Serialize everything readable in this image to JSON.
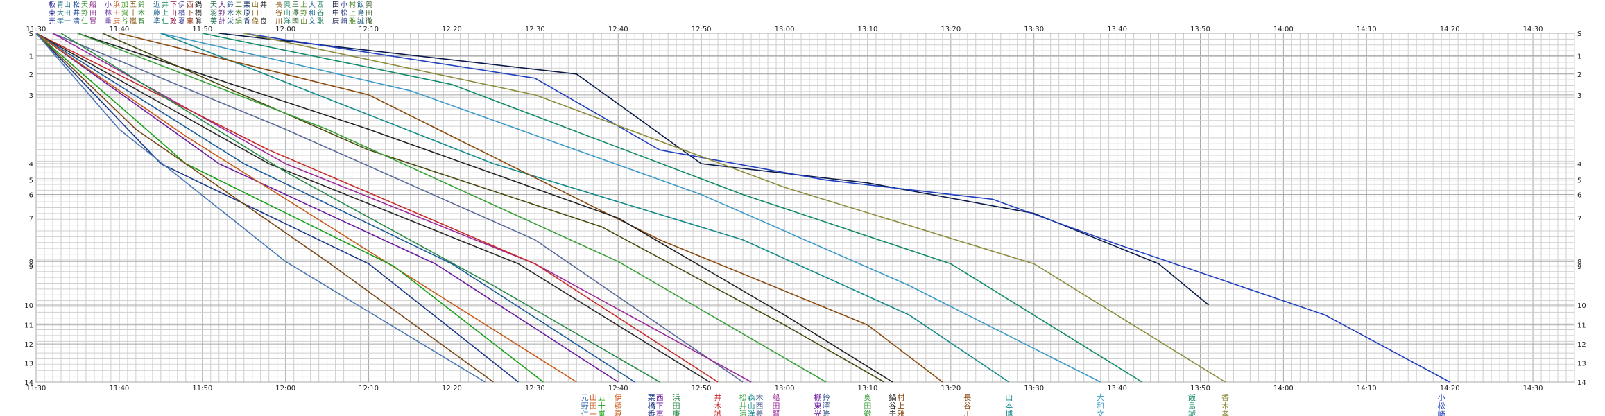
{
  "chart_data": {
    "type": "line",
    "title": "",
    "xlabel": "",
    "ylabel": "",
    "x_range": [
      "11:30",
      "14:35"
    ],
    "y_range": [
      0,
      14
    ],
    "grid": "on",
    "x_tick_labels": [
      "11:30",
      "11:40",
      "11:50",
      "12:00",
      "12:10",
      "12:20",
      "12:30",
      "12:40",
      "12:50",
      "13:00",
      "13:10",
      "13:20",
      "13:30",
      "13:40",
      "13:50",
      "14:00",
      "14:10",
      "14:20",
      "14:30"
    ],
    "y_ticks": [
      {
        "label": "S",
        "value": 0
      },
      {
        "label": "1",
        "value": 1
      },
      {
        "label": "2",
        "value": 2
      },
      {
        "label": "3",
        "value": 3
      },
      {
        "label": "4",
        "value": 4
      },
      {
        "label": "5",
        "value": 5
      },
      {
        "label": "6",
        "value": 6
      },
      {
        "label": "7",
        "value": 7
      },
      {
        "label": "8",
        "value": 8
      },
      {
        "label": "9",
        "value": 9
      },
      {
        "label": "10",
        "value": 10
      },
      {
        "label": "11",
        "value": 11
      },
      {
        "label": "12",
        "value": 12
      },
      {
        "label": "13",
        "value": 13
      },
      {
        "label": "14",
        "value": 14
      }
    ],
    "y_tick_positions": [
      0,
      1.25,
      2.25,
      3.4,
      7.2,
      8.1,
      8.9,
      10.2,
      12.6,
      12.85,
      15,
      16.1,
      17.15,
      18.2,
      19.25
    ],
    "y_tick_scale_max": 19.25,
    "series": [
      {
        "color": "#0a1a4a",
        "points": [
          [
            "11:52",
            0
          ],
          [
            "12:35",
            2
          ],
          [
            "12:50",
            4
          ],
          [
            "13:10",
            5.2
          ],
          [
            "13:30",
            6.8
          ],
          [
            "13:45",
            8.5
          ],
          [
            "13:51",
            10
          ]
        ]
      },
      {
        "color": "#1f3fbf",
        "points": [
          [
            "11:55",
            0
          ],
          [
            "12:30",
            2.2
          ],
          [
            "12:45",
            3.8
          ],
          [
            "13:05",
            5
          ],
          [
            "13:25",
            6.2
          ],
          [
            "13:40",
            7.6
          ],
          [
            "14:05",
            10.5
          ],
          [
            "14:20",
            14
          ]
        ]
      },
      {
        "color": "#8c8c3c",
        "points": [
          [
            "11:55",
            0
          ],
          [
            "12:30",
            3
          ],
          [
            "13:00",
            5.5
          ],
          [
            "13:30",
            8.5
          ],
          [
            "13:53",
            14
          ]
        ]
      },
      {
        "color": "#0f8a6a",
        "points": [
          [
            "11:50",
            0
          ],
          [
            "12:20",
            2.5
          ],
          [
            "12:55",
            6
          ],
          [
            "13:20",
            8.5
          ],
          [
            "13:43",
            14
          ]
        ]
      },
      {
        "color": "#3a9ac8",
        "points": [
          [
            "11:45",
            0
          ],
          [
            "12:15",
            2.8
          ],
          [
            "12:50",
            6
          ],
          [
            "13:15",
            9.5
          ],
          [
            "13:38",
            14
          ]
        ]
      },
      {
        "color": "#138a8a",
        "points": [
          [
            "11:45",
            0
          ],
          [
            "12:25",
            4
          ],
          [
            "12:55",
            7.5
          ],
          [
            "13:15",
            10.5
          ],
          [
            "13:27",
            14
          ]
        ]
      },
      {
        "color": "#8a4a10",
        "points": [
          [
            "11:40",
            0
          ],
          [
            "12:10",
            3
          ],
          [
            "12:45",
            7.5
          ],
          [
            "13:10",
            11
          ],
          [
            "13:19",
            14
          ]
        ]
      },
      {
        "color": "#222222",
        "points": [
          [
            "11:35",
            0
          ],
          [
            "12:10",
            3.5
          ],
          [
            "12:40",
            7
          ],
          [
            "13:00",
            10.5
          ],
          [
            "13:13",
            14
          ]
        ]
      },
      {
        "color": "#4a4a10",
        "points": [
          [
            "11:38",
            0
          ],
          [
            "12:10",
            3.8
          ],
          [
            "12:38",
            7.2
          ],
          [
            "13:00",
            11
          ],
          [
            "13:12",
            14
          ]
        ]
      },
      {
        "color": "#3aa03a",
        "points": [
          [
            "11:35",
            0
          ],
          [
            "12:05",
            3.5
          ],
          [
            "12:40",
            8
          ],
          [
            "13:05",
            14
          ]
        ]
      },
      {
        "color": "#5a6a9a",
        "points": [
          [
            "11:32",
            0
          ],
          [
            "12:00",
            3.5
          ],
          [
            "12:30",
            7.5
          ],
          [
            "12:55",
            14
          ]
        ]
      },
      {
        "color": "#9a2a9a",
        "points": [
          [
            "11:32",
            0
          ],
          [
            "12:00",
            4
          ],
          [
            "12:30",
            8.5
          ],
          [
            "12:56",
            14
          ]
        ]
      },
      {
        "color": "#c82a2a",
        "points": [
          [
            "11:30",
            0
          ],
          [
            "11:58",
            3.8
          ],
          [
            "12:30",
            8.5
          ],
          [
            "12:52",
            14
          ]
        ]
      },
      {
        "color": "#2a2a2a",
        "points": [
          [
            "11:30",
            0
          ],
          [
            "11:58",
            4
          ],
          [
            "12:28",
            8.5
          ],
          [
            "12:51",
            14
          ]
        ]
      },
      {
        "color": "#2a8a4a",
        "points": [
          [
            "11:33",
            0
          ],
          [
            "12:00",
            4.5
          ],
          [
            "12:25",
            9.5
          ],
          [
            "12:45",
            14
          ]
        ]
      },
      {
        "color": "#1a5a9a",
        "points": [
          [
            "11:30",
            0
          ],
          [
            "11:55",
            4
          ],
          [
            "12:20",
            8.5
          ],
          [
            "12:42",
            14
          ]
        ]
      },
      {
        "color": "#6a1aa0",
        "points": [
          [
            "11:30",
            0
          ],
          [
            "11:52",
            4
          ],
          [
            "12:18",
            8.5
          ],
          [
            "12:40",
            14
          ]
        ]
      },
      {
        "color": "#c85a1a",
        "points": [
          [
            "11:30",
            0
          ],
          [
            "11:48",
            3.6
          ],
          [
            "12:12",
            8
          ],
          [
            "12:35",
            14
          ]
        ]
      },
      {
        "color": "#18a018",
        "points": [
          [
            "11:30",
            0
          ],
          [
            "11:48",
            4
          ],
          [
            "12:13",
            9
          ],
          [
            "12:31",
            14
          ]
        ]
      },
      {
        "color": "#1a3a8a",
        "points": [
          [
            "11:30",
            0
          ],
          [
            "11:45",
            4
          ],
          [
            "12:10",
            8.5
          ],
          [
            "12:28",
            14
          ]
        ]
      },
      {
        "color": "#7a4a1a",
        "points": [
          [
            "11:30",
            0
          ],
          [
            "11:42",
            3.5
          ],
          [
            "12:05",
            8
          ],
          [
            "12:25",
            14
          ]
        ]
      },
      {
        "color": "#4a78b4",
        "points": [
          [
            "11:30",
            0
          ],
          [
            "11:40",
            3.5
          ],
          [
            "12:00",
            8
          ],
          [
            "12:24",
            14
          ]
        ]
      }
    ]
  },
  "top_name_groups": [
    {
      "color": "#2a2a9a",
      "lines": [
        "板",
        "東",
        "光"
      ]
    },
    {
      "color": "#2a7a8a",
      "lines": [
        "青山",
        "大田",
        "孝一"
      ]
    },
    {
      "color": "#1a4a9a",
      "lines": [
        "松",
        "井",
        "清"
      ]
    },
    {
      "color": "#3a9a3a",
      "lines": [
        "天",
        "野",
        "仁"
      ]
    },
    {
      "color": "#8a2a8a",
      "lines": [
        "船",
        "田",
        "賢"
      ]
    },
    {
      "color": "#6a3aa0",
      "lines": [
        "小",
        "林",
        "重"
      ]
    },
    {
      "color": "#c85a1a",
      "lines": [
        "浜",
        "田",
        "康"
      ]
    },
    {
      "color": "#4a9a2a",
      "lines": [
        "加",
        "賀",
        "谷"
      ]
    },
    {
      "color": "#8a5a1a",
      "lines": [
        "五",
        "十",
        "嵐"
      ]
    },
    {
      "color": "#3a8a3a",
      "lines": [
        "鈴",
        "木",
        "智"
      ]
    },
    {
      "color": "#2a6a9a",
      "lines": [
        "近",
        "藤",
        "準"
      ]
    },
    {
      "color": "#1a8a5a",
      "lines": [
        "井",
        "上",
        "仁"
      ]
    },
    {
      "color": "#8a1a4a",
      "lines": [
        "下",
        "山",
        "政"
      ]
    },
    {
      "color": "#3a3a9a",
      "lines": [
        "伊",
        "橋",
        "夏"
      ]
    },
    {
      "color": "#9a3a1a",
      "lines": [
        "西",
        "下",
        "車"
      ]
    },
    {
      "color": "#1a1a1a",
      "lines": [
        "鍋",
        "橋",
        "眞"
      ]
    },
    {
      "color": "#1a6a4a",
      "lines": [
        "天",
        "羽",
        "英"
      ]
    },
    {
      "color": "#6a2a8a",
      "lines": [
        "大",
        "野",
        "計"
      ]
    },
    {
      "color": "#2a5a8a",
      "lines": [
        "鈴",
        "木",
        "栄"
      ]
    },
    {
      "color": "#3a7a1a",
      "lines": [
        "二",
        "木",
        "絹"
      ]
    },
    {
      "color": "#1a3a6a",
      "lines": [
        "栗",
        "原",
        "香"
      ]
    },
    {
      "color": "#8a6a1a",
      "lines": [
        "山",
        "口",
        "偉"
      ]
    },
    {
      "color": "#2a2a2a",
      "lines": [
        "井",
        "口",
        "良"
      ]
    },
    {
      "color": "#8a5a1a",
      "lines": [
        "長",
        "谷",
        "川"
      ]
    },
    {
      "color": "#2a8a6a",
      "lines": [
        "奥",
        "山",
        "洋"
      ]
    },
    {
      "color": "#3a6a3a",
      "lines": [
        "三",
        "澤",
        "國"
      ]
    },
    {
      "color": "#5a8a2a",
      "lines": [
        "上",
        "野",
        "山"
      ]
    },
    {
      "color": "#2a6a9a",
      "lines": [
        "大",
        "和",
        "文"
      ]
    },
    {
      "color": "#1a7a5a",
      "lines": [
        "西",
        "谷",
        "聡"
      ]
    },
    {
      "color": "#1a1a4a",
      "lines": [
        "田",
        "中",
        "康"
      ]
    },
    {
      "color": "#2a3a8a",
      "lines": [
        "小",
        "松",
        "崎"
      ]
    },
    {
      "color": "#4a8a1a",
      "lines": [
        "村",
        "上",
        "雅"
      ]
    },
    {
      "color": "#1a5a7a",
      "lines": [
        "飯",
        "島",
        "誠"
      ]
    },
    {
      "color": "#3a5a2a",
      "lines": [
        "奥",
        "田",
        "徹"
      ]
    }
  ],
  "bottom_name_groups": [
    {
      "time": "12:36",
      "color": "#4a78b4",
      "lines": [
        "元",
        "野",
        "仁"
      ]
    },
    {
      "time": "12:37",
      "color": "#c85a1a",
      "lines": [
        "山",
        "田",
        "一"
      ]
    },
    {
      "time": "12:38",
      "color": "#18a018",
      "lines": [
        "五",
        "十",
        "嵐"
      ]
    },
    {
      "time": "12:40",
      "color": "#c85a1a",
      "lines": [
        "伊",
        "藤",
        "夏"
      ]
    },
    {
      "time": "12:44",
      "color": "#1a3a8a",
      "lines": [
        "栗",
        "橋",
        "香"
      ]
    },
    {
      "time": "12:45",
      "color": "#6a1aa0",
      "lines": [
        "西",
        "下",
        "車"
      ]
    },
    {
      "time": "12:47",
      "color": "#2a8a4a",
      "lines": [
        "浜",
        "田",
        "康"
      ]
    },
    {
      "time": "12:52",
      "color": "#c82a2a",
      "lines": [
        "井",
        "木",
        "誠"
      ]
    },
    {
      "time": "12:55",
      "color": "#3aa03a",
      "lines": [
        "松",
        "井",
        "清"
      ]
    },
    {
      "time": "12:56",
      "color": "#138a8a",
      "lines": [
        "森",
        "山",
        "洋"
      ]
    },
    {
      "time": "12:57",
      "color": "#5a6a9a",
      "lines": [
        "木",
        "西",
        "義"
      ]
    },
    {
      "time": "12:59",
      "color": "#9a2a9a",
      "lines": [
        "船",
        "田",
        "賢"
      ]
    },
    {
      "time": "13:04",
      "color": "#6a1aa0",
      "lines": [
        "棚",
        "東",
        "光"
      ]
    },
    {
      "time": "13:05",
      "color": "#3a5a8a",
      "lines": [
        "鈴",
        "澤",
        "隆"
      ]
    },
    {
      "time": "13:10",
      "color": "#3aa03a",
      "lines": [
        "奥",
        "田",
        "徹"
      ]
    },
    {
      "time": "13:13",
      "color": "#222222",
      "lines": [
        "鍋",
        "谷",
        "圭"
      ]
    },
    {
      "time": "13:14",
      "color": "#8a4a10",
      "lines": [
        "村",
        "上",
        "雅"
      ]
    },
    {
      "time": "13:22",
      "color": "#8a4a10",
      "lines": [
        "長",
        "谷",
        "川"
      ]
    },
    {
      "time": "13:27",
      "color": "#138a8a",
      "lines": [
        "山",
        "本",
        "博"
      ]
    },
    {
      "time": "13:38",
      "color": "#3a9ac8",
      "lines": [
        "大",
        "和",
        "文"
      ]
    },
    {
      "time": "13:49",
      "color": "#0f8a6a",
      "lines": [
        "飯",
        "島",
        "誠"
      ]
    },
    {
      "time": "13:53",
      "color": "#8c8c3c",
      "lines": [
        "香",
        "木",
        "孝"
      ]
    },
    {
      "time": "14:19",
      "color": "#1f3fbf",
      "lines": [
        "小",
        "松",
        "崎"
      ]
    }
  ]
}
